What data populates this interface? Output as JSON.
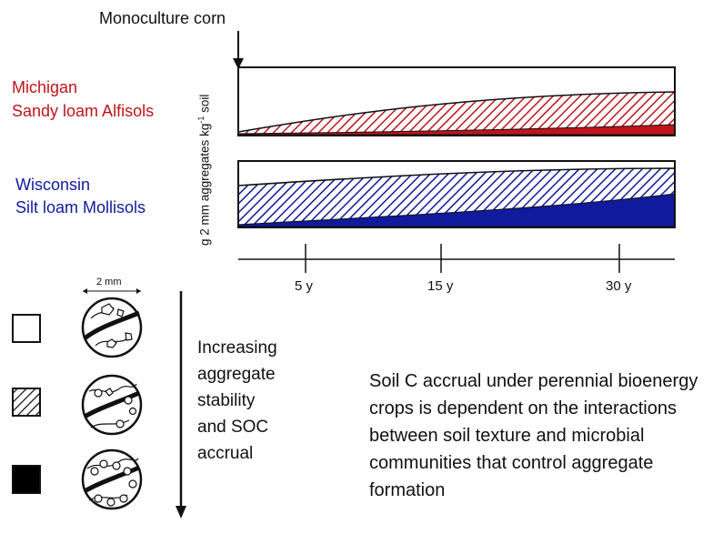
{
  "top_label": "Monoculture corn",
  "sites": [
    {
      "line1": "Michigan",
      "line2": "Sandy loam Alfisols",
      "color": "#c0141c"
    },
    {
      "line1": "Wisconsin",
      "line2": "Silt loam Mollisols",
      "color": "#101a9c"
    }
  ],
  "y_axis": {
    "prefix": "g 2 mm aggregates kg",
    "sup": "-1",
    "suffix": " soil"
  },
  "time_ticks": [
    "5 y",
    "15 y",
    "30 y"
  ],
  "scale_label": "2 mm",
  "stability_text": [
    "Increasing",
    "aggregate",
    "stability",
    "and SOC",
    "accrual"
  ],
  "summary_text": "Soil C accrual under perennial bioenergy crops is dependent on the interactions between soil texture and microbial communities that control aggregate formation",
  "legend": [
    {
      "fill": "white"
    },
    {
      "fill": "hatched"
    },
    {
      "fill": "solid"
    }
  ]
}
